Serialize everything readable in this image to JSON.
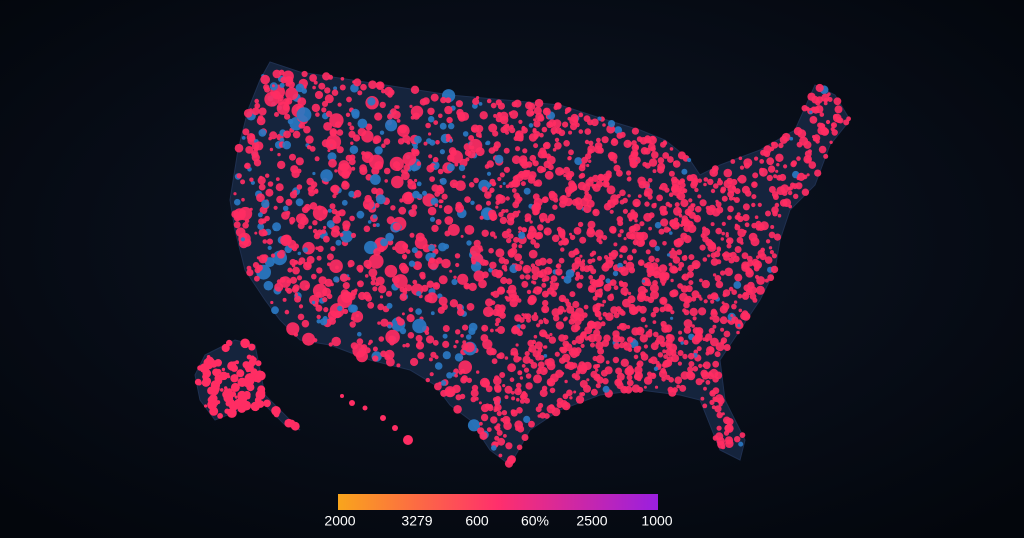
{
  "legend": {
    "labels": [
      "2000",
      "3279",
      "600",
      "60%",
      "2500",
      "1000"
    ],
    "colors": [
      "#f9a51c",
      "#ff2f6c",
      "#9a1fe0"
    ]
  },
  "marks": {
    "colors": [
      "#ff2d63",
      "#2a78c2"
    ]
  }
}
